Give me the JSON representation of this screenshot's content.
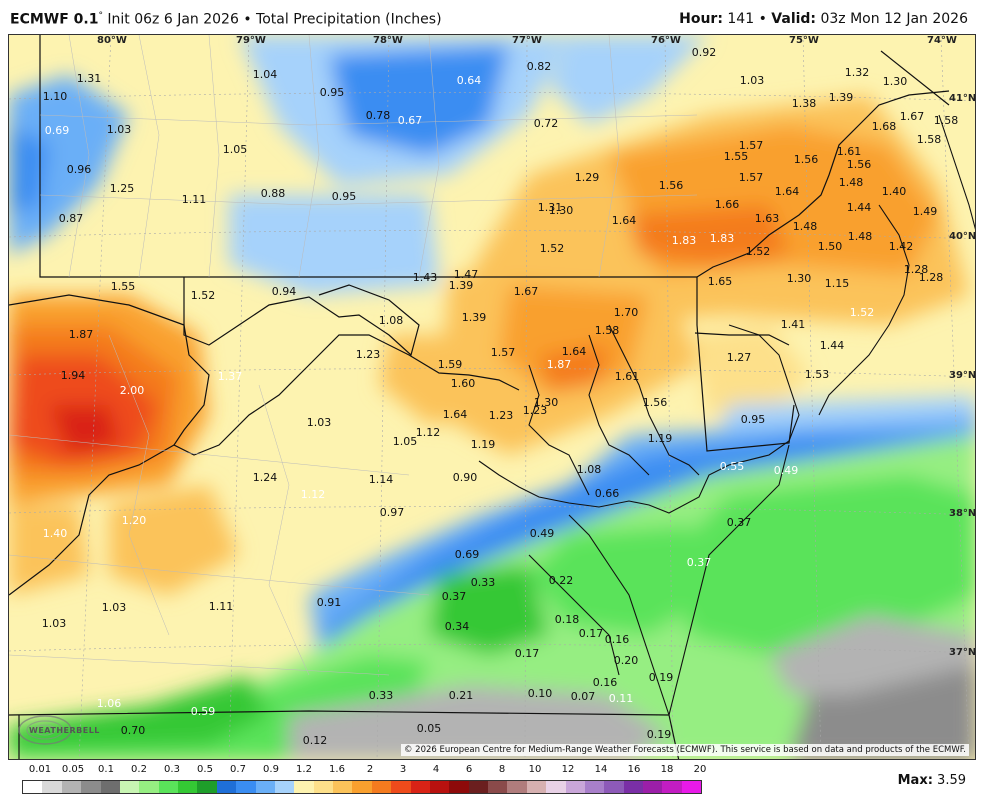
{
  "header": {
    "model": "ECMWF 0.1",
    "degree": "°",
    "init": "Init 06z 6 Jan 2026",
    "bullet": "•",
    "product": "Total Precipitation (Inches)",
    "hour_label": "Hour:",
    "hour_value": "141",
    "valid_label": "Valid:",
    "valid_value": "03z Mon 12 Jan 2026"
  },
  "map": {
    "longitudes": [
      "80°W",
      "79°W",
      "78°W",
      "77°W",
      "76°W",
      "75°W",
      "74°W"
    ],
    "latitudes": [
      "41°N",
      "40°N",
      "39°N",
      "38°N",
      "37°N"
    ],
    "copyright": "© 2026 European Centre for Medium-Range Weather Forecasts (ECMWF). This service is based on data and products of the ECMWF.",
    "logo_text": "WEATHERBELL",
    "values": [
      "1.31",
      "1.04",
      "0.92",
      "1.32",
      "1.30",
      "1.10",
      "0.95",
      "0.64",
      "0.82",
      "1.03",
      "1.39",
      "1.38",
      "0.69",
      "1.03",
      "0.78",
      "0.67",
      "0.72",
      "1.67",
      "1.58",
      "1.68",
      "1.58",
      "1.55",
      "1.57",
      "1.56",
      "1.61",
      "1.56",
      "0.96",
      "1.05",
      "1.29",
      "1.56",
      "1.57",
      "1.48",
      "1.25",
      "1.11",
      "0.88",
      "0.95",
      "1.31",
      "1.30",
      "1.64",
      "1.66",
      "1.63",
      "1.64",
      "1.40",
      "0.87",
      "1.44",
      "1.49",
      "1.48",
      "1.50",
      "1.48",
      "1.42",
      "1.52",
      "1.83",
      "1.83",
      "1.52",
      "1.28",
      "1.28",
      "1.55",
      "1.52",
      "0.94",
      "1.43",
      "1.47",
      "1.39",
      "1.67",
      "1.65",
      "1.30",
      "1.15",
      "1.08",
      "1.39",
      "1.70",
      "1.58",
      "1.41",
      "1.52",
      "1.87",
      "1.23",
      "1.57",
      "1.64",
      "1.27",
      "1.44",
      "1.59",
      "1.87",
      "1.94",
      "1.37",
      "1.60",
      "1.61",
      "1.53",
      "2.00",
      "1.30",
      "1.56",
      "1.23",
      "1.64",
      "1.23",
      "0.95",
      "1.03",
      "1.12",
      "1.05",
      "1.19",
      "1.19",
      "1.08",
      "0.55",
      "0.49",
      "1.24",
      "1.14",
      "0.90",
      "0.66",
      "1.12",
      "0.97",
      "0.37",
      "1.40",
      "1.20",
      "0.49",
      "0.69",
      "0.37",
      "0.33",
      "0.22",
      "0.37",
      "1.03",
      "1.11",
      "0.91",
      "0.18",
      "0.34",
      "0.17",
      "1.03",
      "0.16",
      "0.17",
      "0.20",
      "0.19",
      "0.10",
      "0.16",
      "0.33",
      "0.21",
      "0.07",
      "0.11",
      "1.06",
      "0.59",
      "0.70",
      "0.05",
      "0.12",
      "0.19"
    ]
  },
  "legend": {
    "labels": [
      "0.01",
      "0.05",
      "0.1",
      "0.2",
      "0.3",
      "0.5",
      "0.7",
      "0.9",
      "1.2",
      "1.6",
      "2",
      "3",
      "4",
      "6",
      "8",
      "10",
      "12",
      "14",
      "16",
      "18",
      "20"
    ],
    "colors": [
      "#ffffff",
      "#d9d9d9",
      "#b3b3b3",
      "#8c8c8c",
      "#6e6e6e",
      "#c8f5b3",
      "#96ee82",
      "#5ae35a",
      "#34c834",
      "#1e9e2a",
      "#1f6fd8",
      "#3a8df2",
      "#6aaff7",
      "#a6d2fb",
      "#fdf3b0",
      "#fde08a",
      "#fbc35a",
      "#f9a02e",
      "#f47b1f",
      "#ee4b1b",
      "#d92316",
      "#b8110f",
      "#8e0a0a",
      "#6b1f1f",
      "#8a4a4a",
      "#b07c7c",
      "#d6b0b0",
      "#e8d1e6",
      "#c9a6d9",
      "#a87fca",
      "#8d5ab8",
      "#7a2fa6",
      "#9b1fa8",
      "#c21dc2",
      "#e81ae8"
    ],
    "max_label": "Max:",
    "max_value": "3.59"
  }
}
